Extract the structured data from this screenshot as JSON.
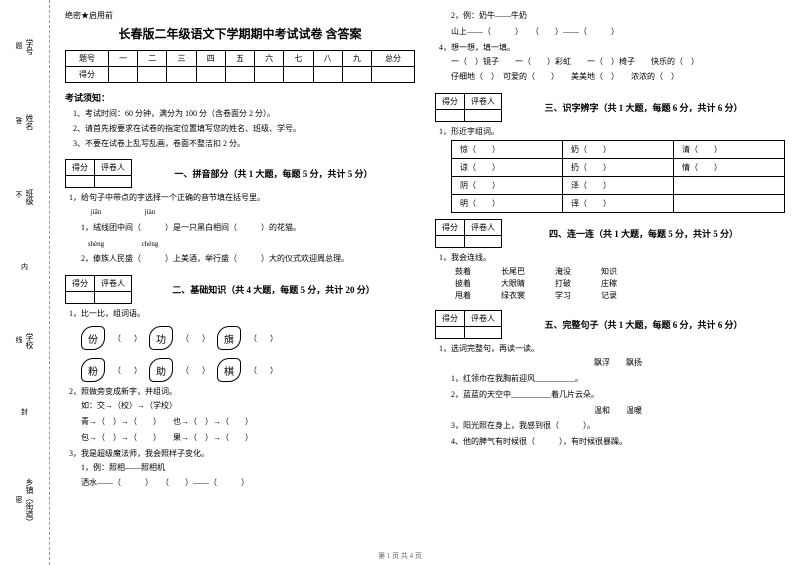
{
  "binding": {
    "items": [
      {
        "label": "学号",
        "vtext": "题"
      },
      {
        "label": "姓名",
        "vtext": "答"
      },
      {
        "label": "班级",
        "vtext": "不"
      },
      {
        "label": "",
        "vtext": "内"
      },
      {
        "label": "学校",
        "vtext": "线"
      },
      {
        "label": "",
        "vtext": "封"
      },
      {
        "label": "乡镇（街道）",
        "vtext": "密"
      }
    ]
  },
  "secret": "绝密★启用前",
  "title": "长春版二年级语文下学期期中考试试卷 含答案",
  "scoreTable": {
    "headers": [
      "题号",
      "一",
      "二",
      "三",
      "四",
      "五",
      "六",
      "七",
      "八",
      "九",
      "总分"
    ],
    "row2": "得分"
  },
  "notice": {
    "title": "考试须知：",
    "items": [
      "1、考试时间：60 分钟，满分为 100 分（含卷面分 2 分）。",
      "2、请首先按要求在试卷的指定位置填写您的姓名、班级、学号。",
      "3、不要在试卷上乱写乱画，卷面不整洁扣 2 分。"
    ]
  },
  "grader": {
    "c1": "得分",
    "c2": "评卷人"
  },
  "sections": {
    "s1": {
      "title": "一、拼音部分（共 1 大题，每题 5 分，共计 5 分）",
      "q1": "1，给句子中带点的字选择一个正确的音节填在括号里。",
      "q1a_py1": "jiān",
      "q1a_py2": "jiàn",
      "q1a": "1，绒线团中间（　　　）是一只黑白相间（　　　）的花猫。",
      "q1b_py1": "shèng",
      "q1b_py2": "chéng",
      "q1b": "2，傣族人民盛（　　　）上美酒，举行盛（　　　）大的仪式欢迎周总理。"
    },
    "s2": {
      "title": "二、基础知识（共 4 大题，每题 5 分，共计 20 分）",
      "q1": "1，比一比，组词语。",
      "chars": [
        [
          "份",
          "功",
          "旗"
        ],
        [
          "粉",
          "助",
          "棋"
        ]
      ],
      "q2": "2，照做旁变成新字，并组词。",
      "q2ex": "如：交→（校）→（学校）",
      "q2a": "青→（　）→（　　）　　也→（　）→（　　）",
      "q2b": "包→（　）→（　　）　　果→（　）→（　　）",
      "q3": "3，我是超级魔法师，我会照样子变化。",
      "q3a": "1，例：照相——照相机",
      "q3b": "洒水——（　　　）　　（　　）——（　　　）"
    },
    "s2r": {
      "q1": "2，例：奶牛——牛奶",
      "q2": "山上——（　　　）　　（　　）——（　　　）",
      "q3": "4，想一想，填一填。",
      "q3a": "一（　）镜子　　一（　　）彩虹　　一（　）椅子　　快乐的（　）",
      "q3b": "仔细地（　）　可爱的（　　）　　美美地（　）　　浓浓的（　）"
    },
    "s3": {
      "title": "三、识字辨字（共 1 大题，每题 6 分，共计 6 分）",
      "q1": "1，形近字组词。",
      "rows": [
        [
          "惊（　　）",
          "奶（　　）",
          "清（　　）"
        ],
        [
          "谅（　　）",
          "扔（　　）",
          "情（　　）"
        ],
        [
          "阴（　　）",
          "泽（　　）",
          "",
          ""
        ],
        [
          "明（　　）",
          "译（　　）",
          "",
          ""
        ]
      ]
    },
    "s4": {
      "title": "四、连一连（共 1 大题，每题 5 分，共计 5 分）",
      "q1": "1，我会连线。",
      "left": [
        "鼓着",
        "披着",
        "甩着"
      ],
      "mid": [
        "长尾巴",
        "大眼睛",
        "绿衣裳"
      ],
      "r1": [
        "淹没",
        "打破",
        "学习"
      ],
      "r2": [
        "知识",
        "庄稼",
        "记录"
      ]
    },
    "s5": {
      "title": "五、完整句子（共 1 大题，每题 6 分，共计 6 分）",
      "q1": "1，选词完整句，再读一读。",
      "q1w": "飘浮　　飘扬",
      "q1a": "1，红领巾在我胸前迎风__________。",
      "q1b": "2，蓝蓝的天空中__________着几片云朵。",
      "q1w2": "温和　　温暖",
      "q1c": "3，阳光照在身上，我感到很（　　　）。",
      "q1d": "4、他的脾气有时候很（　　　），有时候很暴躁。"
    }
  },
  "footer": "第 1 页 共 4 页"
}
